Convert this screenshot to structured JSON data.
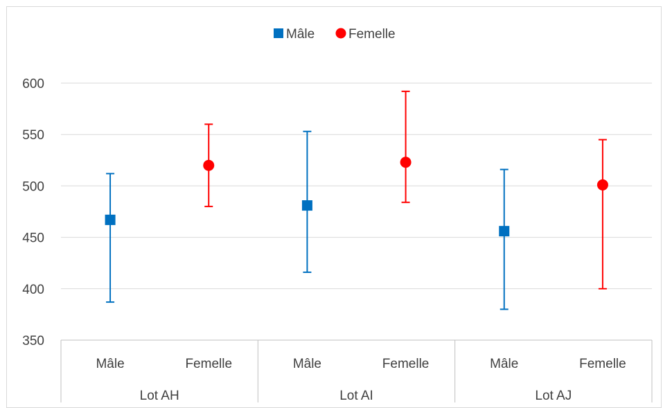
{
  "chart_data": {
    "type": "scatter",
    "subtype": "mean-with-error-bars",
    "title": "",
    "xlabel": "",
    "ylabel": "",
    "ylim": [
      350,
      600
    ],
    "yticks": [
      350,
      400,
      450,
      500,
      550,
      600
    ],
    "grid": true,
    "legend_position": "top",
    "groups": [
      "Lot AH",
      "Lot AI",
      "Lot AJ"
    ],
    "categories": [
      "Mâle",
      "Femelle",
      "Mâle",
      "Femelle",
      "Mâle",
      "Femelle"
    ],
    "series": [
      {
        "name": "Mâle",
        "marker": "square",
        "color": "#0070C0",
        "points": [
          {
            "group": "Lot AH",
            "value": 467,
            "low": 387,
            "high": 512
          },
          {
            "group": "Lot AI",
            "value": 481,
            "low": 416,
            "high": 553
          },
          {
            "group": "Lot AJ",
            "value": 456,
            "low": 380,
            "high": 516
          }
        ]
      },
      {
        "name": "Femelle",
        "marker": "circle",
        "color": "#FF0000",
        "points": [
          {
            "group": "Lot AH",
            "value": 520,
            "low": 480,
            "high": 560
          },
          {
            "group": "Lot AI",
            "value": 523,
            "low": 484,
            "high": 592
          },
          {
            "group": "Lot AJ",
            "value": 501,
            "low": 400,
            "high": 545
          }
        ]
      }
    ]
  }
}
